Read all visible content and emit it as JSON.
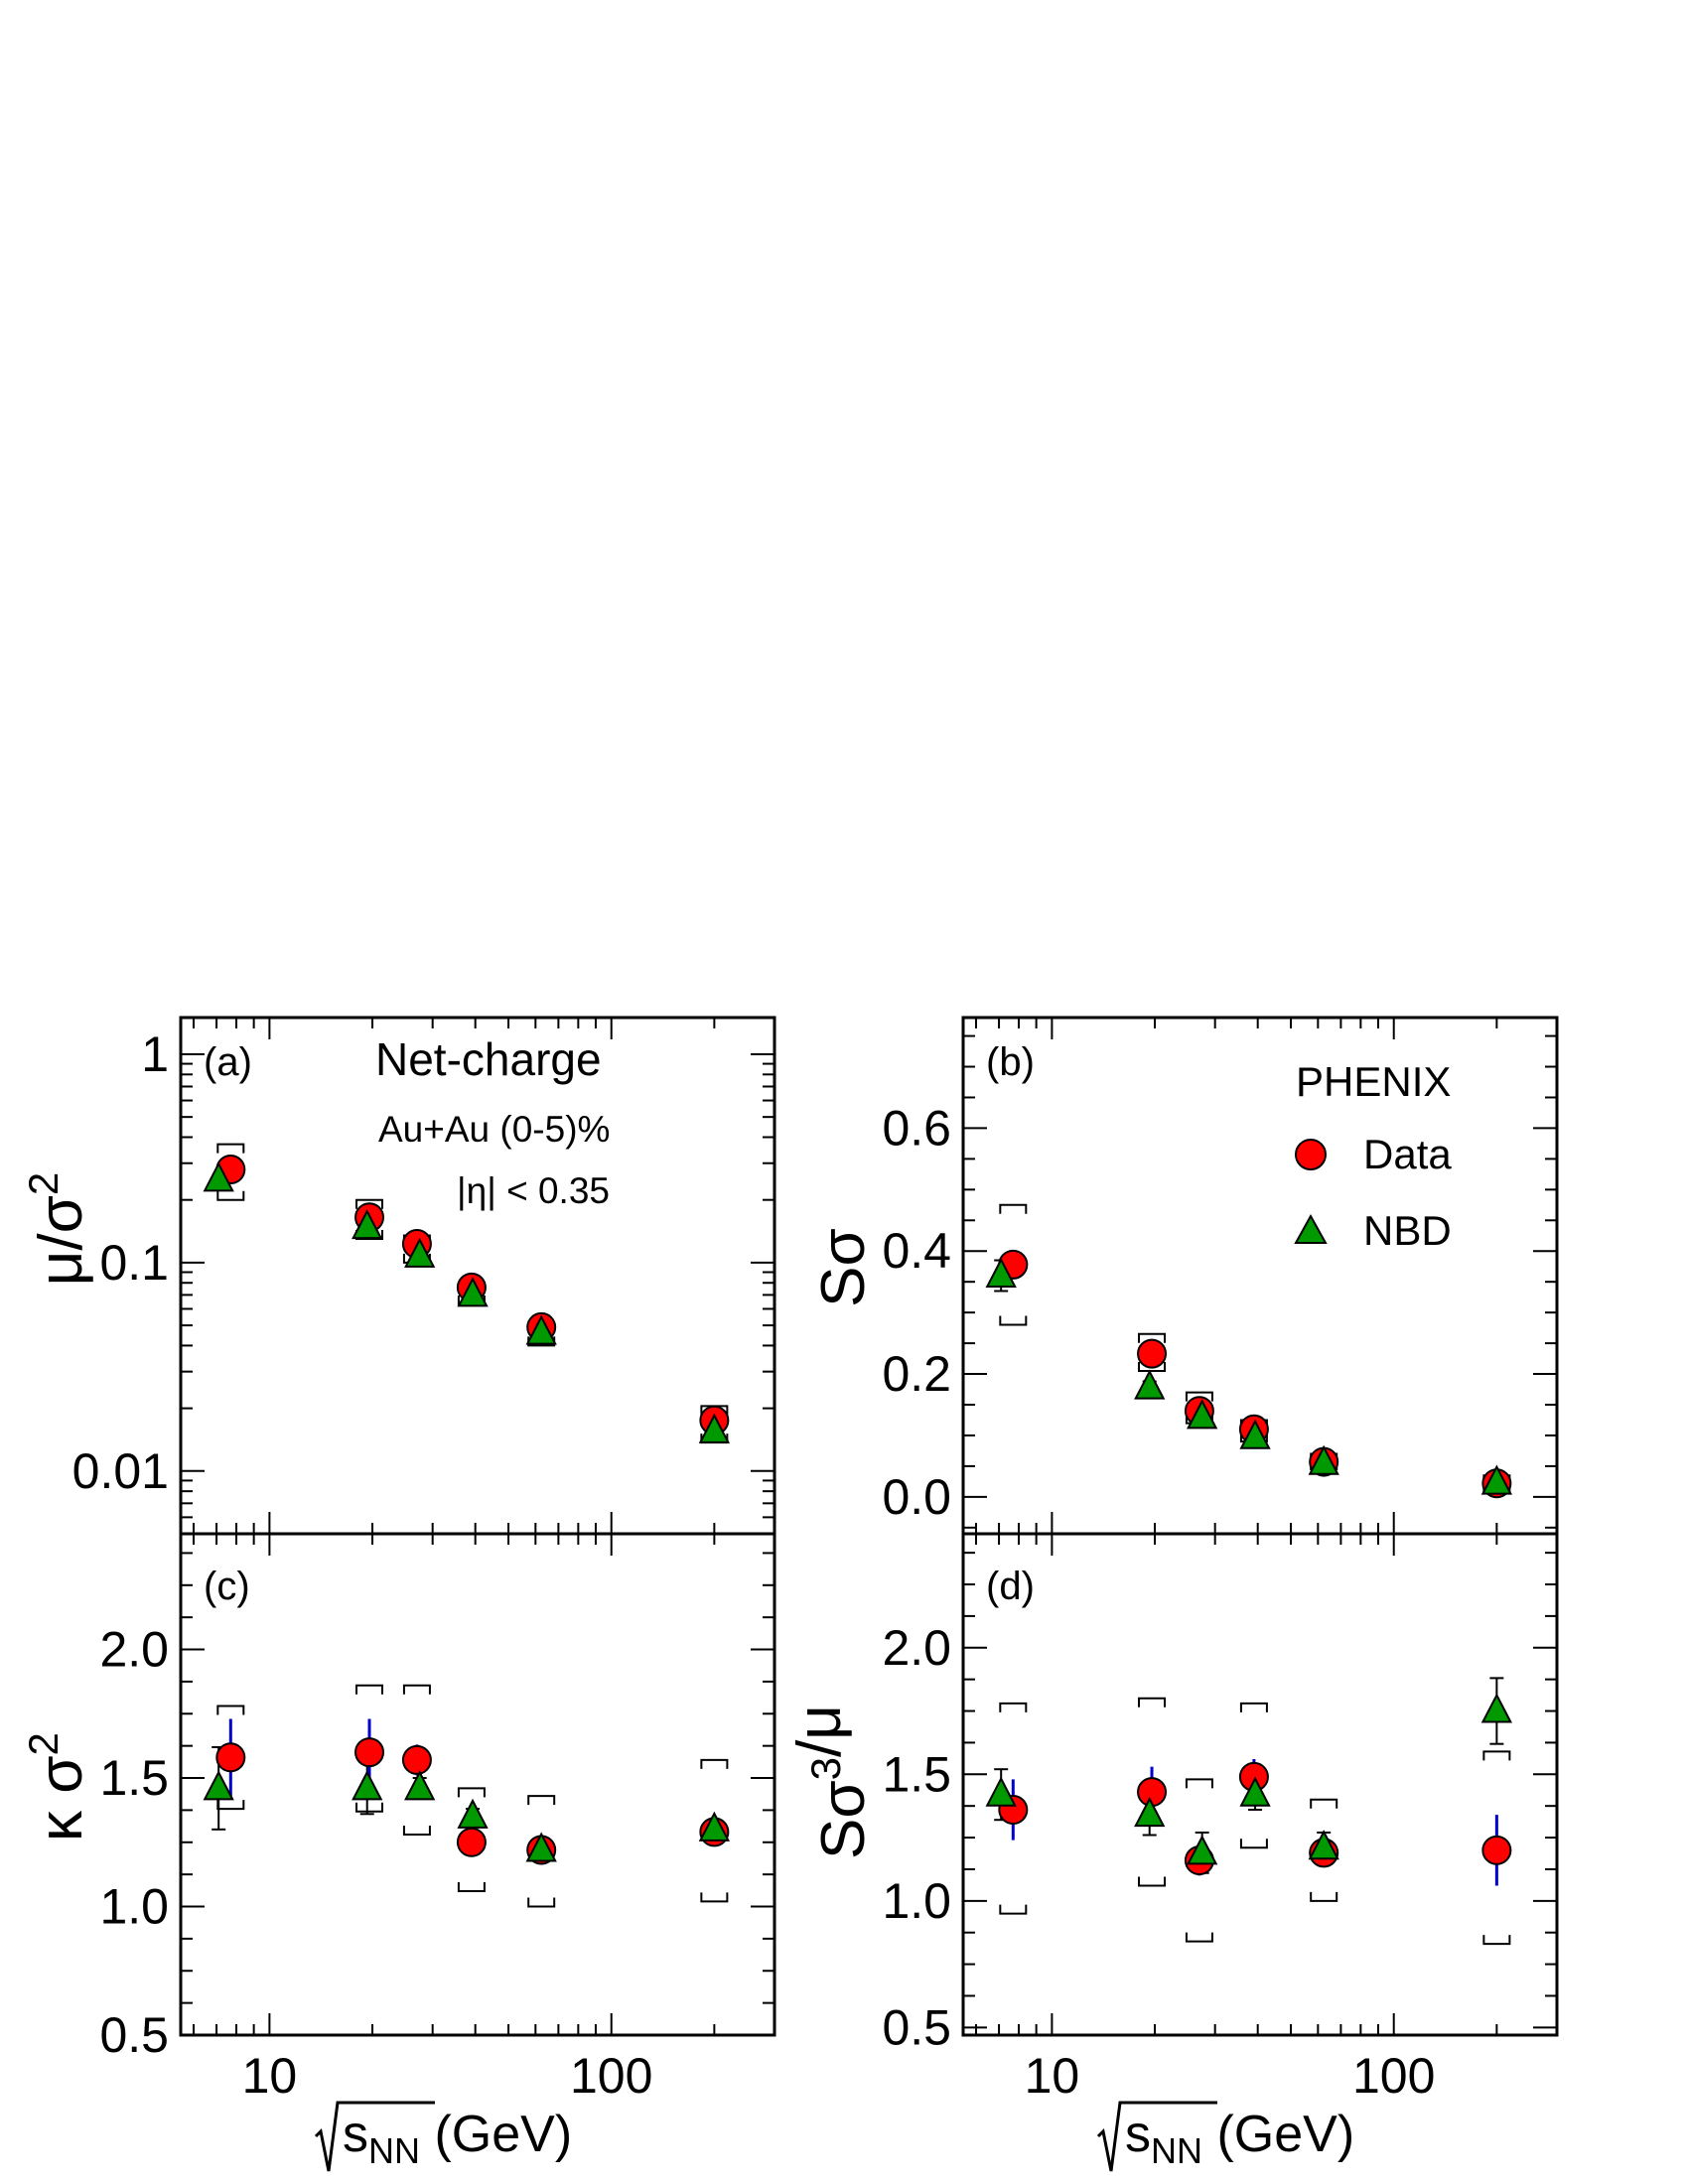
{
  "x_axis": {
    "label_prefix": "s",
    "label_subscript": "NN",
    "label_suffix": " (GeV)",
    "ticks": [
      "10",
      "100"
    ]
  },
  "labels": {
    "net_charge": "Net-charge",
    "system": "Au+Au (0-5)%",
    "eta_cut": "|η| < 0.35",
    "experiment": "PHENIX",
    "legend_data": "Data",
    "legend_nbd": "NBD"
  },
  "colors": {
    "data": "#ff0000",
    "nbd": "#009900",
    "data_stat_error": "#0000cc",
    "frame": "#000000"
  },
  "chart_data": [
    {
      "type": "scatter",
      "panel": "(a)",
      "ylabel": "μ/σ²",
      "yscale": "log",
      "ylim": [
        0.005,
        1.5
      ],
      "xlim": [
        5.5,
        300
      ],
      "xscale": "log",
      "yticks": [
        "0.01",
        "0.1",
        "1"
      ],
      "series": [
        {
          "name": "Data",
          "marker": "circle",
          "x": [
            7.7,
            19.6,
            27,
            39,
            62.4,
            200
          ],
          "y": [
            0.28,
            0.165,
            0.123,
            0.076,
            0.049,
            0.0175
          ],
          "yerr": [
            0,
            0,
            0,
            0,
            0,
            0
          ],
          "syst": [
            [
              0.2,
              0.37
            ],
            [
              0.13,
              0.2
            ],
            [
              0.1,
              0.135
            ],
            [
              0.063,
              0.08
            ],
            [
              0.04,
              0.051
            ],
            [
              0.0137,
              0.0205
            ]
          ]
        },
        {
          "name": "NBD",
          "marker": "triangle",
          "x": [
            7.1,
            19.3,
            27.5,
            39.3,
            62.4,
            200
          ],
          "y": [
            0.25,
            0.148,
            0.108,
            0.07,
            0.046,
            0.0155
          ],
          "yerr": [
            0,
            0,
            0,
            0,
            0,
            0
          ]
        }
      ]
    },
    {
      "type": "scatter",
      "panel": "(b)",
      "ylabel": "Sσ",
      "yscale": "linear",
      "ylim": [
        -0.06,
        0.78
      ],
      "xlim": [
        5.5,
        300
      ],
      "xscale": "log",
      "yticks": [
        "0.0",
        "0.2",
        "0.4",
        "0.6"
      ],
      "series": [
        {
          "name": "Data",
          "marker": "circle",
          "x": [
            7.7,
            19.6,
            27,
            39,
            62.4,
            200
          ],
          "y": [
            0.378,
            0.233,
            0.14,
            0.11,
            0.057,
            0.022
          ],
          "yerr": [
            0.02,
            0.015,
            0.012,
            0.01,
            0.008,
            0.008
          ],
          "syst": [
            [
              0.28,
              0.475
            ],
            [
              0.205,
              0.265
            ],
            [
              0.12,
              0.17
            ],
            [
              0.09,
              0.125
            ],
            [
              0.045,
              0.07
            ],
            [
              0.01,
              0.035
            ]
          ]
        },
        {
          "name": "NBD",
          "marker": "triangle",
          "x": [
            7.1,
            19.3,
            27.5,
            39.3,
            62.4,
            200
          ],
          "y": [
            0.36,
            0.178,
            0.13,
            0.097,
            0.055,
            0.023
          ],
          "yerr": [
            0.025,
            0.01,
            0.01,
            0.008,
            0.006,
            0.006
          ]
        }
      ]
    },
    {
      "type": "scatter",
      "panel": "(c)",
      "ylabel": "κ σ²",
      "yscale": "linear",
      "ylim": [
        0.5,
        2.45
      ],
      "xlim": [
        5.5,
        300
      ],
      "xscale": "log",
      "yticks": [
        "0.5",
        "1.0",
        "1.5",
        "2.0"
      ],
      "series": [
        {
          "name": "Data",
          "marker": "circle",
          "x": [
            7.7,
            19.6,
            27,
            39,
            62.4,
            200
          ],
          "y": [
            1.58,
            1.6,
            1.57,
            1.25,
            1.22,
            1.29
          ],
          "yerr": [
            0.15,
            0.13,
            0.06,
            0.05,
            0.04,
            0.04
          ],
          "syst": [
            [
              1.38,
              1.78
            ],
            [
              1.37,
              1.86
            ],
            [
              1.28,
              1.86
            ],
            [
              1.06,
              1.46
            ],
            [
              1.0,
              1.43
            ],
            [
              1.02,
              1.57
            ]
          ]
        },
        {
          "name": "NBD",
          "marker": "triangle",
          "x": [
            7.1,
            19.3,
            27.5,
            39.3,
            62.4,
            200
          ],
          "y": [
            1.46,
            1.46,
            1.46,
            1.35,
            1.22,
            1.3
          ],
          "yerr": [
            0.16,
            0.1,
            0.04,
            0.03,
            0.03,
            0.02
          ]
        }
      ]
    },
    {
      "type": "scatter",
      "panel": "(d)",
      "ylabel": "Sσ³/μ",
      "yscale": "linear",
      "ylim": [
        0.47,
        2.45
      ],
      "xlim": [
        5.5,
        300
      ],
      "xscale": "log",
      "yticks": [
        "0.5",
        "1.0",
        "1.5",
        "2.0"
      ],
      "series": [
        {
          "name": "Data",
          "marker": "circle",
          "x": [
            7.7,
            19.6,
            27,
            39,
            62.4,
            200
          ],
          "y": [
            1.36,
            1.43,
            1.16,
            1.49,
            1.19,
            1.2
          ],
          "yerr": [
            0.12,
            0.1,
            0.06,
            0.07,
            0.05,
            0.14
          ],
          "syst": [
            [
              0.95,
              1.78
            ],
            [
              1.06,
              1.8
            ],
            [
              0.84,
              1.48
            ],
            [
              1.21,
              1.78
            ],
            [
              1.0,
              1.4
            ],
            [
              0.83,
              1.59
            ]
          ]
        },
        {
          "name": "NBD",
          "marker": "triangle",
          "x": [
            7.1,
            19.3,
            27.5,
            39.3,
            62.4,
            200
          ],
          "y": [
            1.42,
            1.34,
            1.19,
            1.42,
            1.21,
            1.75
          ],
          "yerr": [
            0.1,
            0.08,
            0.08,
            0.06,
            0.06,
            0.13
          ]
        }
      ]
    }
  ]
}
